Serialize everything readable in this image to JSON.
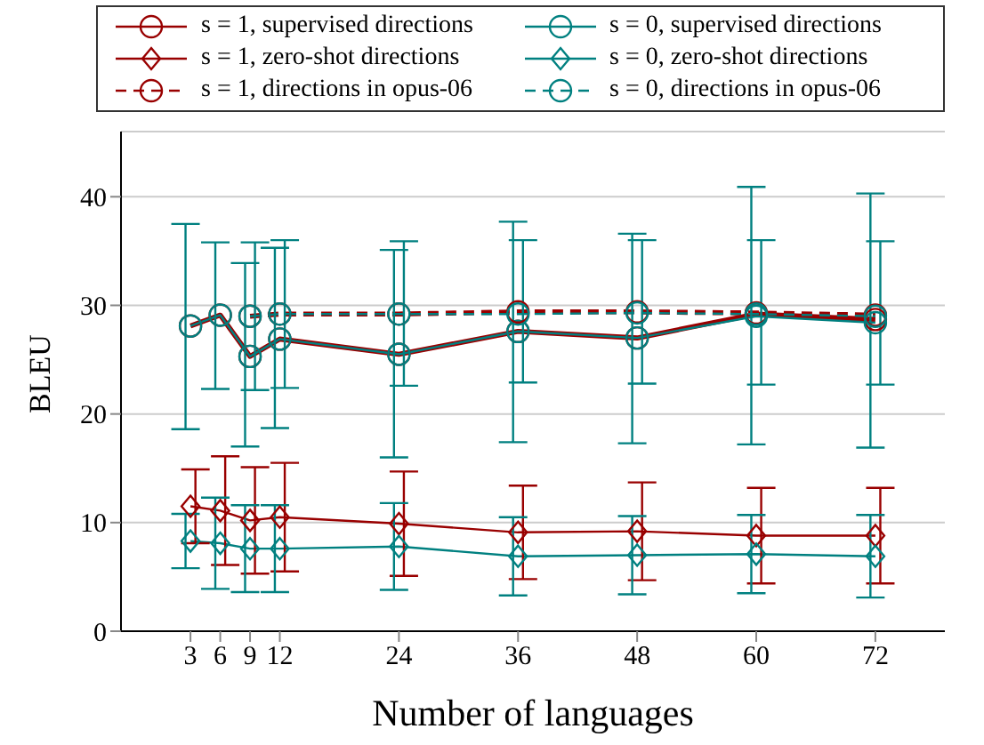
{
  "chart_data": {
    "type": "line",
    "xlabel": "Number of languages",
    "ylabel": "BLEU",
    "xlim": [
      -4,
      79
    ],
    "xticks": [
      3,
      6,
      9,
      12,
      24,
      36,
      48,
      60,
      72
    ],
    "ylim": [
      0,
      46
    ],
    "yticks": [
      0,
      10,
      20,
      30,
      40
    ],
    "grid": "y",
    "legend": "top",
    "series": [
      {
        "name": "s = 1, supervised directions",
        "color": "#990000",
        "marker": "circle",
        "line_style": "solid",
        "x": [
          3,
          6,
          9,
          12,
          24,
          36,
          48,
          60,
          72
        ],
        "values": [
          28.1,
          29.1,
          25.3,
          26.9,
          25.5,
          27.6,
          27.0,
          29.2,
          28.7
        ]
      },
      {
        "name": "s = 0, supervised directions",
        "color": "#008080",
        "marker": "circle",
        "line_style": "solid",
        "x": [
          3,
          6,
          9,
          12,
          24,
          36,
          48,
          60,
          72
        ],
        "values": [
          28.1,
          29.1,
          25.3,
          26.9,
          25.5,
          27.6,
          27.0,
          29.0,
          28.4
        ],
        "errors": [
          [
            18.6,
            37.5
          ],
          [
            22.3,
            35.8
          ],
          [
            17.0,
            33.9
          ],
          [
            18.7,
            35.3
          ],
          [
            16.0,
            35.1
          ],
          [
            17.4,
            37.7
          ],
          [
            17.3,
            36.6
          ],
          [
            17.2,
            40.9
          ],
          [
            16.9,
            40.3
          ]
        ]
      },
      {
        "name": "s = 1, zero-shot directions",
        "color": "#990000",
        "marker": "diamond",
        "line_style": "solid",
        "x": [
          3,
          6,
          9,
          12,
          24,
          36,
          48,
          60,
          72
        ],
        "values": [
          11.5,
          11.1,
          10.2,
          10.5,
          9.9,
          9.1,
          9.2,
          8.8,
          8.8
        ],
        "errors": [
          3.4,
          5.0,
          4.9,
          5.0,
          4.8,
          4.3,
          4.5,
          4.4,
          4.4
        ]
      },
      {
        "name": "s = 0, zero-shot directions",
        "color": "#008080",
        "marker": "diamond",
        "line_style": "solid",
        "x": [
          3,
          6,
          9,
          12,
          24,
          36,
          48,
          60,
          72
        ],
        "values": [
          8.3,
          8.1,
          7.6,
          7.6,
          7.8,
          6.9,
          7.0,
          7.1,
          6.9
        ],
        "errors": [
          2.5,
          4.2,
          4.0,
          4.0,
          4.0,
          3.6,
          3.6,
          3.6,
          3.8
        ]
      },
      {
        "name": "s = 1, directions in opus-06",
        "color": "#990000",
        "marker": "circle",
        "line_style": "dashed",
        "x": [
          9,
          12,
          24,
          36,
          48,
          60,
          72
        ],
        "values": [
          29.0,
          29.2,
          29.2,
          29.4,
          29.4,
          29.3,
          29.1
        ]
      },
      {
        "name": "s = 0, directions in opus-06",
        "color": "#008080",
        "marker": "circle",
        "line_style": "dashed",
        "x": [
          9,
          12,
          24,
          36,
          48,
          60,
          72
        ],
        "values": [
          29.0,
          29.2,
          29.2,
          29.2,
          29.3,
          29.2,
          29.0
        ],
        "errors": [
          [
            22.2,
            35.8
          ],
          [
            22.4,
            36.0
          ],
          [
            22.6,
            35.9
          ],
          [
            22.9,
            36.0
          ],
          [
            22.8,
            36.0
          ],
          [
            22.7,
            36.0
          ],
          [
            22.7,
            35.9
          ]
        ]
      }
    ]
  }
}
